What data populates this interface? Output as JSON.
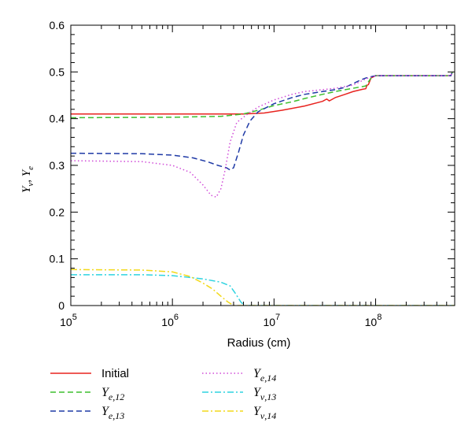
{
  "chart_data": {
    "type": "line",
    "xscale": "log",
    "xlim": [
      100000,
      600000000
    ],
    "ylim": [
      0,
      0.6
    ],
    "xlabel": "Radius (cm)",
    "ylabel_parts": [
      "Y",
      "ν",
      ", ",
      "Y",
      "e"
    ],
    "grid": false,
    "legend_position": "below-plot",
    "x_tick_labels": [
      {
        "value": 100000,
        "base": "10",
        "exp": "5"
      },
      {
        "value": 1000000,
        "base": "10",
        "exp": "6"
      },
      {
        "value": 10000000,
        "base": "10",
        "exp": "7"
      },
      {
        "value": 100000000,
        "base": "10",
        "exp": "8"
      }
    ],
    "y_ticks": [
      0,
      0.1,
      0.2,
      0.3,
      0.4,
      0.5,
      0.6
    ],
    "y_tick_labels": [
      "0",
      "0.1",
      "0.2",
      "0.3",
      "0.4",
      "0.5",
      "0.6"
    ],
    "series": [
      {
        "name": "Initial",
        "label": {
          "main": "Initial",
          "sub": ""
        },
        "color": "#e8231f",
        "dash": "",
        "points": [
          [
            100000,
            0.41
          ],
          [
            1000000,
            0.41
          ],
          [
            3000000,
            0.41
          ],
          [
            5000000,
            0.41
          ],
          [
            8000000,
            0.412
          ],
          [
            12000000,
            0.418
          ],
          [
            20000000,
            0.427
          ],
          [
            30000000,
            0.437
          ],
          [
            33000000,
            0.442
          ],
          [
            35000000,
            0.438
          ],
          [
            40000000,
            0.445
          ],
          [
            50000000,
            0.452
          ],
          [
            60000000,
            0.458
          ],
          [
            75000000,
            0.463
          ],
          [
            80000000,
            0.464
          ],
          [
            82000000,
            0.471
          ],
          [
            85000000,
            0.473
          ],
          [
            90000000,
            0.487
          ],
          [
            100000000,
            0.492
          ],
          [
            200000000,
            0.492
          ],
          [
            550000000,
            0.492
          ],
          [
            570000000,
            0.5
          ]
        ]
      },
      {
        "name": "Ye,12",
        "label": {
          "main": "Y",
          "sub": "e,12"
        },
        "color": "#3dbf2e",
        "dash": "7,4",
        "points": [
          [
            100000,
            0.402
          ],
          [
            1000000,
            0.403
          ],
          [
            3000000,
            0.405
          ],
          [
            5000000,
            0.41
          ],
          [
            7000000,
            0.418
          ],
          [
            10000000,
            0.428
          ],
          [
            15000000,
            0.436
          ],
          [
            20000000,
            0.443
          ],
          [
            30000000,
            0.452
          ],
          [
            40000000,
            0.458
          ],
          [
            60000000,
            0.465
          ],
          [
            80000000,
            0.47
          ],
          [
            90000000,
            0.487
          ],
          [
            100000000,
            0.492
          ],
          [
            550000000,
            0.492
          ],
          [
            570000000,
            0.5
          ]
        ]
      },
      {
        "name": "Ye,13",
        "label": {
          "main": "Y",
          "sub": "e,13"
        },
        "color": "#1f3aa6",
        "dash": "7,4",
        "points": [
          [
            100000,
            0.326
          ],
          [
            500000,
            0.325
          ],
          [
            1000000,
            0.322
          ],
          [
            1600000,
            0.316
          ],
          [
            2200000,
            0.308
          ],
          [
            2800000,
            0.3
          ],
          [
            3400000,
            0.295
          ],
          [
            3700000,
            0.29
          ],
          [
            4000000,
            0.295
          ],
          [
            4500000,
            0.33
          ],
          [
            5000000,
            0.365
          ],
          [
            5800000,
            0.395
          ],
          [
            7000000,
            0.415
          ],
          [
            10000000,
            0.432
          ],
          [
            15000000,
            0.445
          ],
          [
            20000000,
            0.452
          ],
          [
            30000000,
            0.458
          ],
          [
            40000000,
            0.462
          ],
          [
            50000000,
            0.467
          ],
          [
            60000000,
            0.475
          ],
          [
            70000000,
            0.482
          ],
          [
            80000000,
            0.487
          ],
          [
            100000000,
            0.492
          ],
          [
            550000000,
            0.492
          ],
          [
            570000000,
            0.5
          ]
        ]
      },
      {
        "name": "Ye,14",
        "label": {
          "main": "Y",
          "sub": "e,14"
        },
        "color": "#d04ad8",
        "dash": "1.5,3",
        "points": [
          [
            100000,
            0.31
          ],
          [
            500000,
            0.308
          ],
          [
            1000000,
            0.3
          ],
          [
            1500000,
            0.285
          ],
          [
            2000000,
            0.258
          ],
          [
            2400000,
            0.236
          ],
          [
            2700000,
            0.232
          ],
          [
            3000000,
            0.25
          ],
          [
            3300000,
            0.29
          ],
          [
            3700000,
            0.35
          ],
          [
            4300000,
            0.392
          ],
          [
            5500000,
            0.41
          ],
          [
            7000000,
            0.425
          ],
          [
            10000000,
            0.44
          ],
          [
            15000000,
            0.452
          ],
          [
            20000000,
            0.458
          ],
          [
            30000000,
            0.462
          ],
          [
            40000000,
            0.465
          ],
          [
            60000000,
            0.472
          ],
          [
            80000000,
            0.485
          ],
          [
            100000000,
            0.492
          ],
          [
            550000000,
            0.492
          ],
          [
            570000000,
            0.5
          ]
        ]
      },
      {
        "name": "Yν,13",
        "label": {
          "main": "Y",
          "sub": "ν,13"
        },
        "color": "#2ed3e0",
        "dash": "8,3,2,3",
        "points": [
          [
            100000,
            0.066
          ],
          [
            500000,
            0.066
          ],
          [
            1000000,
            0.064
          ],
          [
            1500000,
            0.06
          ],
          [
            2000000,
            0.057
          ],
          [
            3000000,
            0.05
          ],
          [
            3700000,
            0.042
          ],
          [
            4200000,
            0.025
          ],
          [
            4700000,
            0.008
          ],
          [
            5100000,
            0.0
          ],
          [
            600000000,
            0.0
          ]
        ]
      },
      {
        "name": "Yν,14",
        "label": {
          "main": "Y",
          "sub": "ν,14"
        },
        "color": "#f2d91a",
        "dash": "8,3,2,3",
        "points": [
          [
            100000,
            0.077
          ],
          [
            500000,
            0.076
          ],
          [
            1000000,
            0.072
          ],
          [
            1500000,
            0.062
          ],
          [
            2000000,
            0.048
          ],
          [
            2500000,
            0.035
          ],
          [
            3000000,
            0.02
          ],
          [
            3500000,
            0.008
          ],
          [
            4000000,
            0.0
          ],
          [
            600000000,
            0.0
          ]
        ]
      }
    ]
  }
}
